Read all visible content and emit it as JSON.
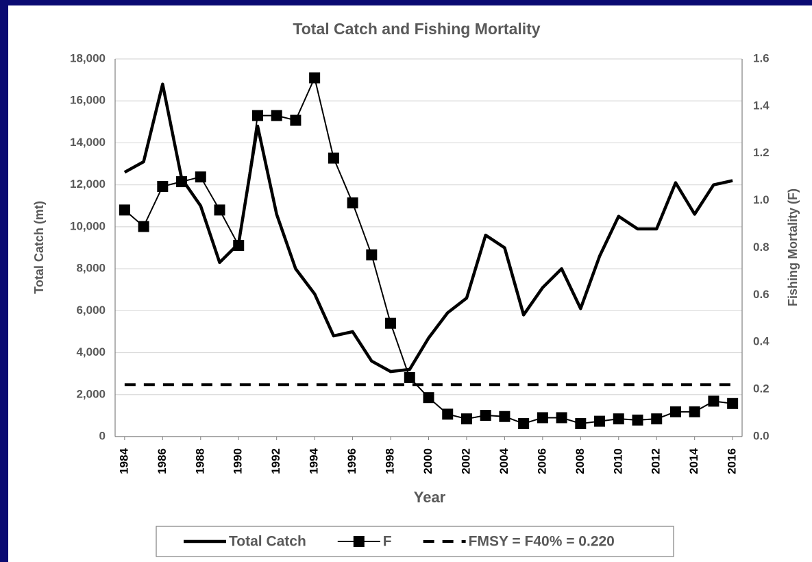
{
  "chart_data": {
    "type": "line",
    "title": "Total Catch and Fishing Mortality",
    "x_label": "Year",
    "y_label": "Total Catch (mt)",
    "y2_label": "Fishing Mortality (F)",
    "x": [
      1984,
      1985,
      1986,
      1987,
      1988,
      1989,
      1990,
      1991,
      1992,
      1993,
      1994,
      1995,
      1996,
      1997,
      1998,
      1999,
      2000,
      2001,
      2002,
      2003,
      2004,
      2005,
      2006,
      2007,
      2008,
      2009,
      2010,
      2011,
      2012,
      2013,
      2014,
      2015,
      2016
    ],
    "xlim": [
      1983.5,
      2016.5
    ],
    "xticks": [
      1984,
      1986,
      1988,
      1990,
      1992,
      1994,
      1996,
      1998,
      2000,
      2002,
      2004,
      2006,
      2008,
      2010,
      2012,
      2014,
      2016
    ],
    "ylim": [
      0,
      18000
    ],
    "yticks": [
      0,
      {
        "value": 2000,
        "label": "2,000"
      },
      {
        "value": 4000,
        "label": "4,000"
      },
      {
        "value": 6000,
        "label": "6,000"
      },
      {
        "value": 8000,
        "label": "8,000"
      },
      {
        "value": 10000,
        "label": "10,000"
      },
      {
        "value": 12000,
        "label": "12,000"
      },
      {
        "value": 14000,
        "label": "14,000"
      },
      {
        "value": 16000,
        "label": "16,000"
      },
      {
        "value": 18000,
        "label": "18,000"
      }
    ],
    "y2lim": [
      0,
      1.6
    ],
    "y2ticks": [
      {
        "value": 0,
        "label": "0.0"
      },
      0.2,
      0.4,
      0.6,
      0.8,
      {
        "value": 1,
        "label": "1.0"
      },
      1.2,
      1.4,
      1.6
    ],
    "grid": true,
    "series": [
      {
        "name": "Total Catch",
        "color": "#000000",
        "values": [
          12600,
          13100,
          16800,
          12300,
          11000,
          8300,
          9200,
          14800,
          10600,
          8000,
          6800,
          4800,
          5000,
          3600,
          3100,
          3200,
          4700,
          5900,
          6600,
          9600,
          9000,
          5800,
          7100,
          8000,
          6100,
          8600,
          10500,
          9900,
          9900,
          12100,
          10600,
          12000,
          12200
        ]
      },
      {
        "name": "F",
        "color": "#000000",
        "axis": "y2",
        "marker": "square",
        "values": [
          0.96,
          0.89,
          1.06,
          1.08,
          1.1,
          0.96,
          0.81,
          1.36,
          1.36,
          1.34,
          1.52,
          1.18,
          0.99,
          0.77,
          0.48,
          0.25,
          0.165,
          0.095,
          0.075,
          0.09,
          0.085,
          0.055,
          0.08,
          0.08,
          0.055,
          0.065,
          0.075,
          0.07,
          0.075,
          0.105,
          0.105,
          0.15,
          0.14
        ]
      }
    ],
    "reference_lines": [
      {
        "name": "FMSY = F40% = 0.220",
        "value": 0.22,
        "axis": "y2",
        "color": "#000000",
        "dash": true
      }
    ],
    "legend": "bottom"
  }
}
